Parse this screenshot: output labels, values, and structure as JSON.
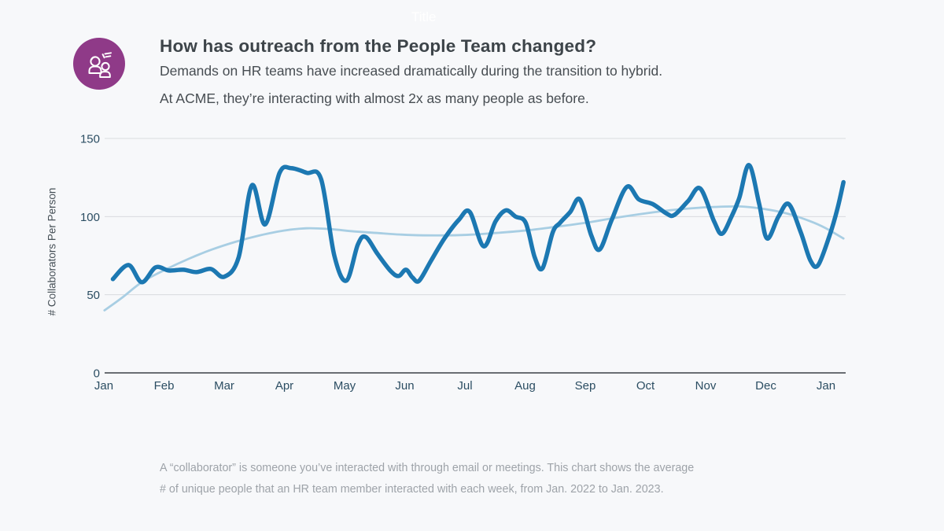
{
  "page": {
    "ghost_title": "Title",
    "background": "#f7f8fa"
  },
  "header": {
    "icon": "people-conversation-icon",
    "icon_bg_color": "#8F3A88",
    "title": "How has outreach from the People Team changed?",
    "subtitle_line1": "Demands on HR teams have increased dramatically during the transition to hybrid.",
    "subtitle_line2": "At ACME, they’re interacting with almost 2x as many people as before."
  },
  "footnote": {
    "line1": "A “collaborator” is someone you’ve interacted with through email or meetings. This chart shows the average",
    "line2": "# of unique people that an HR team member interacted with each week, from Jan. 2022 to Jan. 2023."
  },
  "chart_data": {
    "type": "line",
    "title": "",
    "xlabel": "",
    "ylabel": "# Collaborators Per Person",
    "ylim": [
      0,
      150
    ],
    "grid": "horizontal",
    "legend": "none",
    "x_unit": "months from Jan 2022 (0) to Jan 2023 (12)",
    "x_ticks": {
      "labels": [
        "Jan",
        "Feb",
        "Mar",
        "Apr",
        "May",
        "Jun",
        "Jul",
        "Aug",
        "Sep",
        "Oct",
        "Nov",
        "Dec",
        "Jan"
      ],
      "positions": [
        0,
        1,
        2,
        3,
        4,
        5,
        6,
        7,
        8,
        9,
        10,
        11,
        12
      ]
    },
    "y_ticks": [
      0,
      50,
      100,
      150
    ],
    "colors": {
      "weekly_line": "#1c78b2",
      "trend_line": "#a8cee3",
      "grid": "#d8dbdf",
      "axis": "#3c4146",
      "tick_text": "#2b4d62"
    },
    "series": [
      {
        "name": "weekly-avg-collaborators",
        "color": "#1c78b2",
        "stroke_width": 5.5,
        "x": [
          0.15,
          0.41,
          0.63,
          0.86,
          1.08,
          1.32,
          1.54,
          1.78,
          2.0,
          2.24,
          2.46,
          2.68,
          2.92,
          3.11,
          3.37,
          3.61,
          3.83,
          4.03,
          4.22,
          4.35,
          4.55,
          4.77,
          4.9,
          5.02,
          5.13,
          5.24,
          5.44,
          5.66,
          5.9,
          6.08,
          6.31,
          6.51,
          6.68,
          6.84,
          7.01,
          7.16,
          7.29,
          7.46,
          7.58,
          7.75,
          7.91,
          8.1,
          8.24,
          8.44,
          8.69,
          8.89,
          9.12,
          9.35,
          9.48,
          9.71,
          9.91,
          10.14,
          10.27,
          10.43,
          10.56,
          10.72,
          10.89,
          11.02,
          11.21,
          11.38,
          11.58,
          11.74,
          11.87,
          12.06,
          12.19,
          12.29
        ],
        "values": [
          60,
          69,
          58,
          67.5,
          65.5,
          66,
          64.5,
          66.5,
          61.5,
          74,
          120,
          95,
          128,
          131,
          128,
          124,
          75,
          59,
          82,
          87,
          76,
          65,
          62,
          66,
          61,
          59,
          72,
          86,
          98,
          103,
          81,
          97,
          104,
          100,
          96,
          74,
          67,
          90,
          96,
          103,
          111,
          88,
          79,
          98,
          119,
          111,
          108,
          102,
          101,
          110,
          118,
          97,
          89,
          100,
          112,
          133,
          108,
          86,
          100,
          108,
          90,
          72,
          69,
          88,
          105,
          122
        ]
      },
      {
        "name": "smoothed-trend",
        "color": "#a8cee3",
        "stroke_width": 2.8,
        "x": [
          0.01,
          0.3,
          0.63,
          1.02,
          1.41,
          1.8,
          2.2,
          2.59,
          2.98,
          3.37,
          3.76,
          4.16,
          4.55,
          4.94,
          5.33,
          5.73,
          6.12,
          6.51,
          6.98,
          7.42,
          8.0,
          8.47,
          8.99,
          9.52,
          10.04,
          10.56,
          10.95,
          11.35,
          11.74,
          12.0,
          12.29
        ],
        "values": [
          40,
          48,
          58,
          66,
          73,
          79,
          84,
          88,
          91,
          92.5,
          92,
          90.5,
          89.5,
          88.5,
          88,
          88,
          88.5,
          89.5,
          91,
          93,
          96,
          99,
          102,
          104.5,
          106,
          106.5,
          105,
          102,
          97,
          92.5,
          86
        ]
      }
    ]
  }
}
